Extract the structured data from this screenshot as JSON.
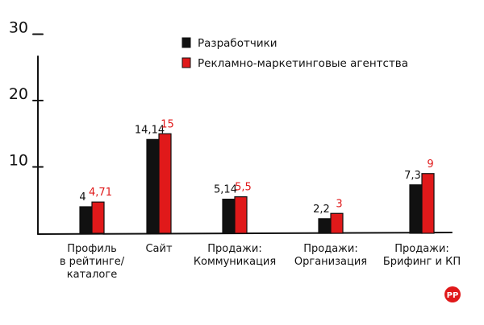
{
  "chart_data": {
    "type": "bar",
    "title": "",
    "xlabel": "",
    "ylabel": "",
    "ylim": [
      0,
      33
    ],
    "yticks": [
      10,
      20,
      30
    ],
    "grid": false,
    "legend_position": "top-center",
    "categories": [
      "Профиль в рейтинге/ каталоге",
      "Сайт",
      "Продажи: Коммуникация",
      "Продажи: Организация",
      "Продажи: Брифинг и КП"
    ],
    "category_lines": [
      [
        "Профиль",
        "в рейтинге/",
        "каталоге"
      ],
      [
        "Сайт"
      ],
      [
        "Продажи:",
        "Коммуникация"
      ],
      [
        "Продажи:",
        "Организация"
      ],
      [
        "Продажи:",
        "Брифинг и КП"
      ]
    ],
    "series": [
      {
        "name": "Разработчики",
        "color": "#111111",
        "values": [
          4,
          14.14,
          5.14,
          2.2,
          7.3
        ],
        "labels": [
          "4",
          "14,14",
          "5,14",
          "2,2",
          "7,3"
        ]
      },
      {
        "name": "Рекламно-маркетинговые агентства",
        "color": "#e0191a",
        "values": [
          4.71,
          15,
          5.5,
          3,
          9
        ],
        "labels": [
          "4,71",
          "15",
          "5,5",
          "3",
          "9"
        ]
      }
    ],
    "value_label_colors": [
      "#111111",
      "#e0191a"
    ]
  },
  "logo": {
    "text": "РР",
    "color": "#e0191a",
    "icon": "rr-logo-icon"
  }
}
